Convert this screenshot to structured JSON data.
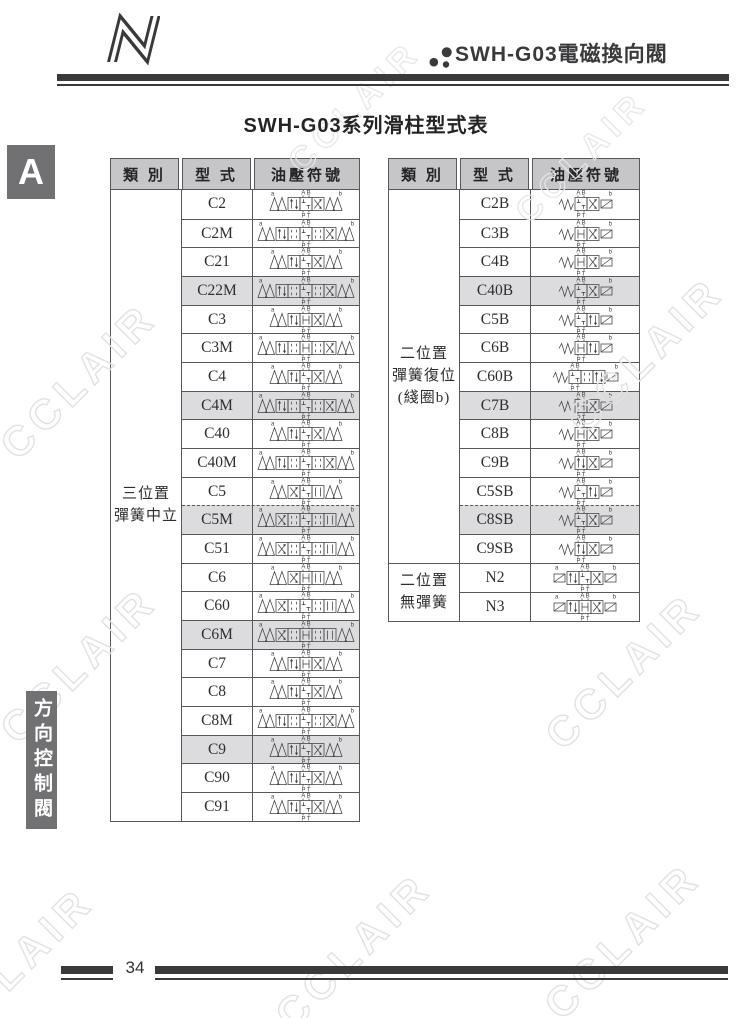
{
  "page": {
    "header_title": "SWH-G03電磁換向閥",
    "section_letter": "A",
    "table_title": "SWH-G03系列滑柱型式表",
    "sidebar_text": "方向控制閥",
    "page_number": "34",
    "watermark": "CCLAIR",
    "colors": {
      "ink": "#3a3a3c",
      "table_border": "#58585a",
      "header_cell_bg": "#c6c6c8",
      "shaded_row_bg": "#dcdcde",
      "tab_bg": "#717173",
      "watermark": "#e2e2e2"
    }
  },
  "columns": {
    "category": "類 別",
    "type": "型 式",
    "symbol": "油壓符號"
  },
  "symbol_labels": {
    "a": "a",
    "b": "b",
    "ab": "A B",
    "pt": "P T"
  },
  "tables": {
    "left": {
      "groups": [
        {
          "category_lines": [
            "三位置",
            "彈簧中立"
          ],
          "rows": [
            {
              "type": "C2",
              "shaded": false,
              "dashed": false,
              "sym": {
                "l": "sol",
                "r": "sol",
                "la": "a",
                "lb": "b",
                "cells": [
                  "pp",
                  "closed",
                  "x"
                ]
              }
            },
            {
              "type": "C2M",
              "shaded": false,
              "dashed": false,
              "sym": {
                "l": "sol",
                "r": "sol",
                "la": "a",
                "lb": "b",
                "cells": [
                  "pp",
                  "tr",
                  "closed",
                  "tr",
                  "x"
                ]
              }
            },
            {
              "type": "C21",
              "shaded": false,
              "dashed": false,
              "sym": {
                "l": "sol",
                "r": "sol",
                "la": "a",
                "lb": "b",
                "cells": [
                  "pp",
                  "closed",
                  "x"
                ]
              }
            },
            {
              "type": "C22M",
              "shaded": true,
              "dashed": false,
              "sym": {
                "l": "sol",
                "r": "sol",
                "la": "a",
                "lb": "b",
                "cells": [
                  "pp",
                  "tr",
                  "closed",
                  "tr",
                  "x"
                ]
              }
            },
            {
              "type": "C3",
              "shaded": false,
              "dashed": false,
              "sym": {
                "l": "sol",
                "r": "sol",
                "la": "a",
                "lb": "b",
                "cells": [
                  "pp",
                  "h",
                  "x"
                ]
              }
            },
            {
              "type": "C3M",
              "shaded": false,
              "dashed": false,
              "sym": {
                "l": "sol",
                "r": "sol",
                "la": "a",
                "lb": "b",
                "cells": [
                  "pp",
                  "tr",
                  "h",
                  "tr",
                  "x"
                ]
              }
            },
            {
              "type": "C4",
              "shaded": false,
              "dashed": false,
              "sym": {
                "l": "sol",
                "r": "sol",
                "la": "a",
                "lb": "b",
                "cells": [
                  "pp",
                  "closed",
                  "x"
                ]
              }
            },
            {
              "type": "C4M",
              "shaded": true,
              "dashed": false,
              "sym": {
                "l": "sol",
                "r": "sol",
                "la": "a",
                "lb": "b",
                "cells": [
                  "pp",
                  "tr",
                  "closed",
                  "tr",
                  "x"
                ]
              }
            },
            {
              "type": "C40",
              "shaded": false,
              "dashed": false,
              "sym": {
                "l": "sol",
                "r": "sol",
                "la": "a",
                "lb": "b",
                "cells": [
                  "pp",
                  "closed",
                  "x"
                ]
              }
            },
            {
              "type": "C40M",
              "shaded": false,
              "dashed": false,
              "sym": {
                "l": "sol",
                "r": "sol",
                "la": "a",
                "lb": "b",
                "cells": [
                  "pp",
                  "tr",
                  "closed",
                  "tr",
                  "x"
                ]
              }
            },
            {
              "type": "C5",
              "shaded": false,
              "dashed": false,
              "sym": {
                "l": "sol",
                "r": "sol",
                "la": "a",
                "lb": "b",
                "cells": [
                  "x",
                  "closed",
                  "ss"
                ]
              }
            },
            {
              "type": "C5M",
              "shaded": true,
              "dashed": true,
              "sym": {
                "l": "sol",
                "r": "sol",
                "la": "a",
                "lb": "b",
                "cells": [
                  "x",
                  "tr",
                  "closed",
                  "tr",
                  "ss"
                ]
              }
            },
            {
              "type": "C51",
              "shaded": false,
              "dashed": false,
              "sym": {
                "l": "sol",
                "r": "sol",
                "la": "a",
                "lb": "b",
                "cells": [
                  "x",
                  "tr",
                  "closed",
                  "tr",
                  "ss"
                ]
              }
            },
            {
              "type": "C6",
              "shaded": false,
              "dashed": false,
              "sym": {
                "l": "sol",
                "r": "sol",
                "la": "a",
                "lb": "b",
                "cells": [
                  "x",
                  "h",
                  "ss"
                ]
              }
            },
            {
              "type": "C60",
              "shaded": false,
              "dashed": false,
              "sym": {
                "l": "sol",
                "r": "sol",
                "la": "a",
                "lb": "b",
                "cells": [
                  "x",
                  "tr",
                  "closed",
                  "tr",
                  "ss"
                ]
              }
            },
            {
              "type": "C6M",
              "shaded": true,
              "dashed": false,
              "sym": {
                "l": "sol",
                "r": "sol",
                "la": "a",
                "lb": "b",
                "cells": [
                  "x",
                  "tr",
                  "h",
                  "tr",
                  "ss"
                ]
              }
            },
            {
              "type": "C7",
              "shaded": false,
              "dashed": false,
              "sym": {
                "l": "sol",
                "r": "sol",
                "la": "a",
                "lb": "b",
                "cells": [
                  "pp",
                  "h",
                  "x"
                ]
              }
            },
            {
              "type": "C8",
              "shaded": false,
              "dashed": false,
              "sym": {
                "l": "sol",
                "r": "sol",
                "la": "a",
                "lb": "b",
                "cells": [
                  "pp",
                  "closed",
                  "x"
                ]
              }
            },
            {
              "type": "C8M",
              "shaded": false,
              "dashed": false,
              "sym": {
                "l": "sol",
                "r": "sol",
                "la": "a",
                "lb": "b",
                "cells": [
                  "pp",
                  "tr",
                  "closed",
                  "tr",
                  "x"
                ]
              }
            },
            {
              "type": "C9",
              "shaded": true,
              "dashed": false,
              "sym": {
                "l": "sol",
                "r": "sol",
                "la": "a",
                "lb": "b",
                "cells": [
                  "pp",
                  "closed",
                  "x"
                ]
              }
            },
            {
              "type": "C90",
              "shaded": false,
              "dashed": false,
              "sym": {
                "l": "sol",
                "r": "sol",
                "la": "a",
                "lb": "b",
                "cells": [
                  "pp",
                  "closed",
                  "x"
                ]
              }
            },
            {
              "type": "C91",
              "shaded": false,
              "dashed": false,
              "sym": {
                "l": "sol",
                "r": "sol",
                "la": "a",
                "lb": "b",
                "cells": [
                  "pp",
                  "closed",
                  "x"
                ]
              }
            }
          ]
        }
      ]
    },
    "right": {
      "groups": [
        {
          "category_lines": [
            "二位置",
            "彈簧復位",
            "(綫圈b)"
          ],
          "rows": [
            {
              "type": "C2B",
              "shaded": false,
              "dashed": false,
              "sym": {
                "l": "spr",
                "r": "box",
                "la": "",
                "lb": "b",
                "pc": 0,
                "cells": [
                  "closed",
                  "x"
                ]
              }
            },
            {
              "type": "C3B",
              "shaded": false,
              "dashed": false,
              "sym": {
                "l": "spr",
                "r": "box",
                "la": "",
                "lb": "b",
                "pc": 0,
                "cells": [
                  "h",
                  "x"
                ]
              }
            },
            {
              "type": "C4B",
              "shaded": false,
              "dashed": false,
              "sym": {
                "l": "spr",
                "r": "box",
                "la": "",
                "lb": "b",
                "pc": 0,
                "cells": [
                  "h",
                  "x"
                ]
              }
            },
            {
              "type": "C40B",
              "shaded": true,
              "dashed": false,
              "sym": {
                "l": "spr",
                "r": "box",
                "la": "",
                "lb": "b",
                "pc": 0,
                "cells": [
                  "closed",
                  "x"
                ]
              }
            },
            {
              "type": "C5B",
              "shaded": false,
              "dashed": false,
              "sym": {
                "l": "spr",
                "r": "box",
                "la": "",
                "lb": "b",
                "pc": 0,
                "cells": [
                  "closed",
                  "pp"
                ]
              }
            },
            {
              "type": "C6B",
              "shaded": false,
              "dashed": false,
              "sym": {
                "l": "spr",
                "r": "box",
                "la": "",
                "lb": "b",
                "pc": 0,
                "cells": [
                  "h",
                  "pp"
                ]
              }
            },
            {
              "type": "C60B",
              "shaded": false,
              "dashed": false,
              "sym": {
                "l": "spr",
                "r": "box",
                "la": "",
                "lb": "b",
                "pc": 0,
                "cells": [
                  "closed",
                  "tr",
                  "pp"
                ]
              }
            },
            {
              "type": "C7B",
              "shaded": true,
              "dashed": false,
              "sym": {
                "l": "spr",
                "r": "box",
                "la": "",
                "lb": "b",
                "pc": 0,
                "cells": [
                  "h",
                  "x"
                ]
              }
            },
            {
              "type": "C8B",
              "shaded": false,
              "dashed": false,
              "sym": {
                "l": "spr",
                "r": "box",
                "la": "",
                "lb": "b",
                "pc": 0,
                "cells": [
                  "h",
                  "x"
                ]
              }
            },
            {
              "type": "C9B",
              "shaded": false,
              "dashed": false,
              "sym": {
                "l": "spr",
                "r": "box",
                "la": "",
                "lb": "b",
                "pc": 0,
                "cells": [
                  "pp",
                  "x"
                ]
              }
            },
            {
              "type": "C5SB",
              "shaded": false,
              "dashed": false,
              "sym": {
                "l": "spr",
                "r": "box",
                "la": "",
                "lb": "b",
                "pc": 0,
                "cells": [
                  "closed",
                  "pp"
                ]
              }
            },
            {
              "type": "C8SB",
              "shaded": true,
              "dashed": true,
              "sym": {
                "l": "spr",
                "r": "box",
                "la": "",
                "lb": "b",
                "pc": 0,
                "cells": [
                  "closed",
                  "x"
                ]
              }
            },
            {
              "type": "C9SB",
              "shaded": false,
              "dashed": false,
              "sym": {
                "l": "spr",
                "r": "box",
                "la": "",
                "lb": "b",
                "pc": 0,
                "cells": [
                  "pp",
                  "x"
                ]
              }
            }
          ]
        },
        {
          "category_lines": [
            "二位置",
            "無彈簧"
          ],
          "rows": [
            {
              "type": "N2",
              "shaded": false,
              "dashed": false,
              "sym": {
                "l": "box",
                "r": "box",
                "la": "a",
                "lb": "b",
                "pc": 1,
                "cells": [
                  "pp",
                  "closed",
                  "x"
                ]
              }
            },
            {
              "type": "N3",
              "shaded": false,
              "dashed": false,
              "sym": {
                "l": "box",
                "r": "box",
                "la": "a",
                "lb": "b",
                "pc": 1,
                "cells": [
                  "pp",
                  "h",
                  "x"
                ]
              }
            }
          ]
        }
      ]
    }
  }
}
